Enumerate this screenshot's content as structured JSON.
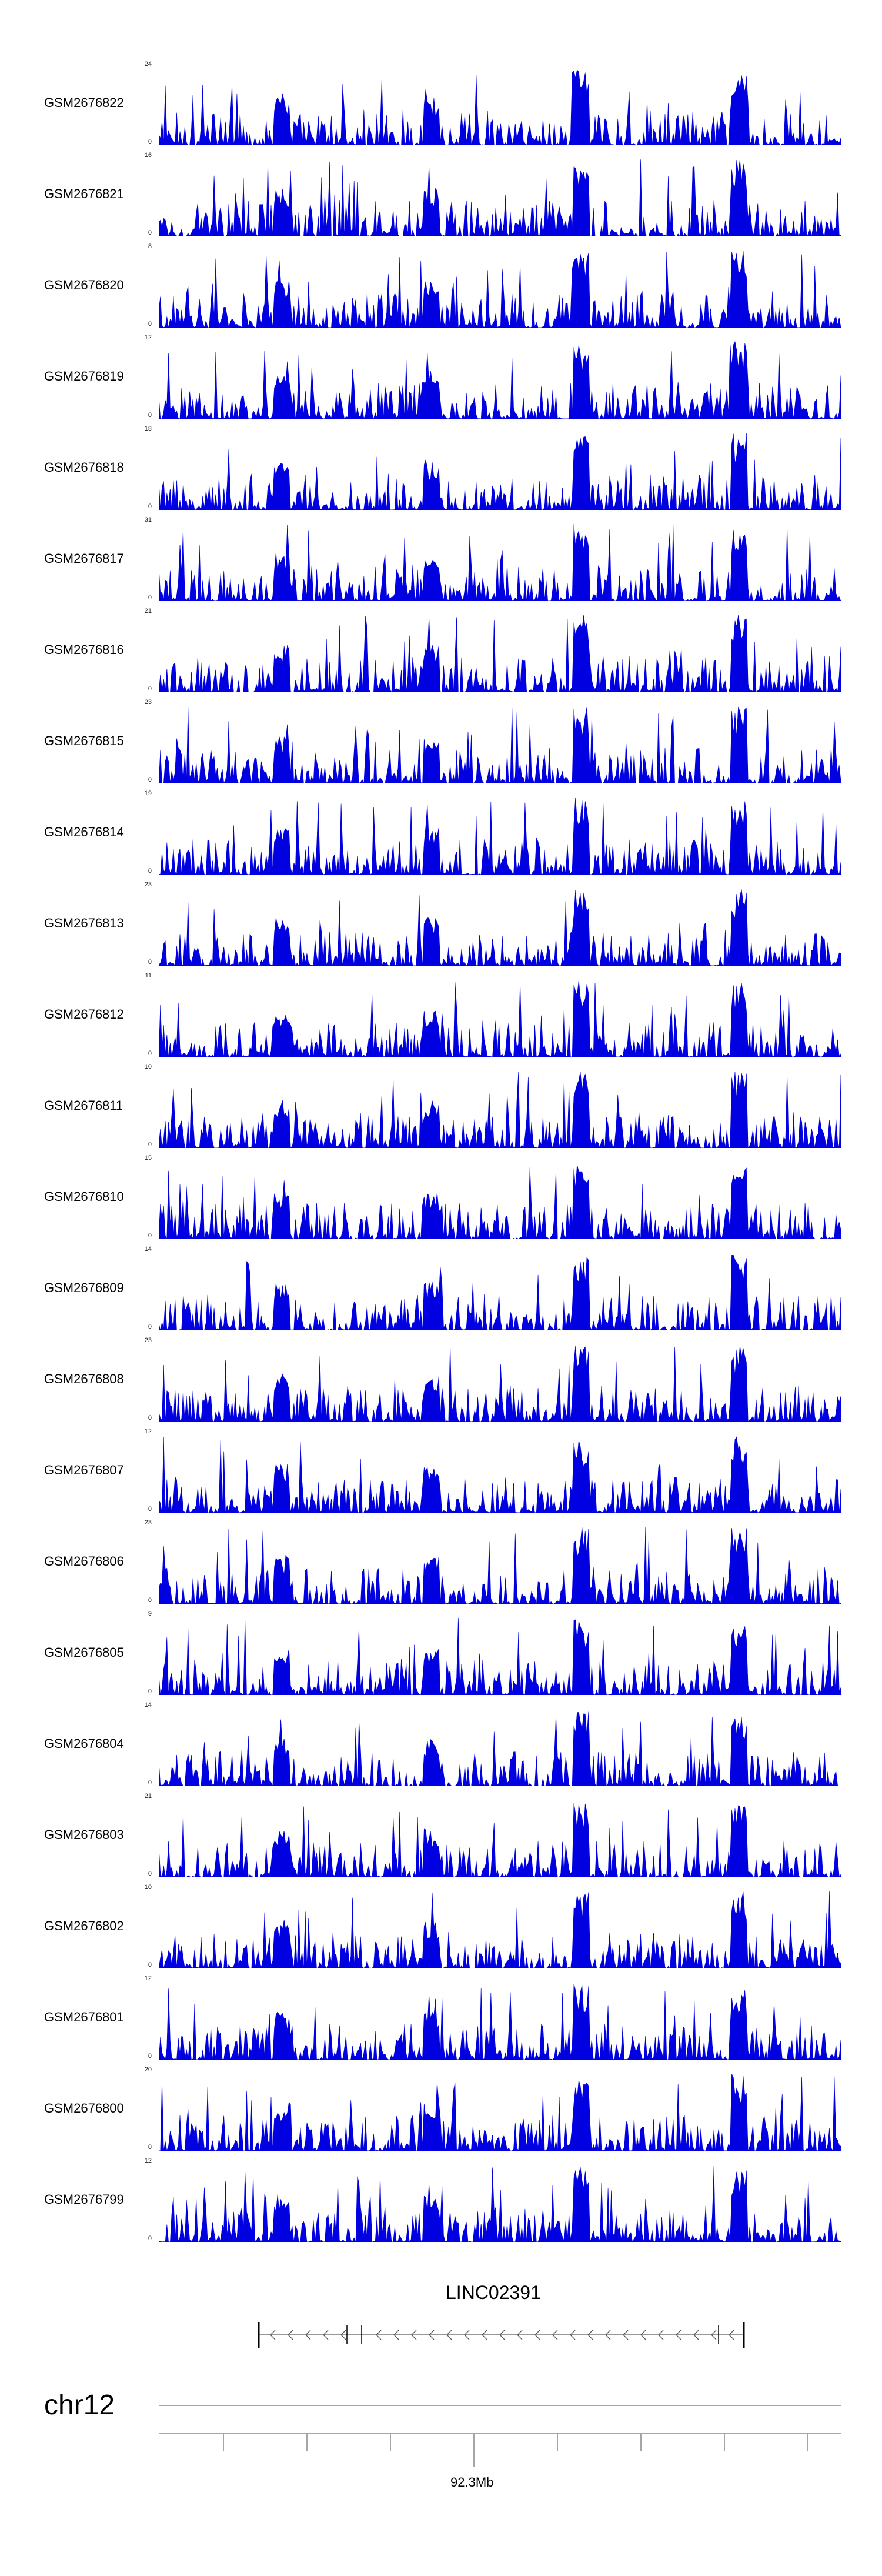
{
  "tracks": [
    {
      "label": "GSM2676822",
      "ymax": "24",
      "ymin": "0"
    },
    {
      "label": "GSM2676821",
      "ymax": "16",
      "ymin": "0"
    },
    {
      "label": "GSM2676820",
      "ymax": "8",
      "ymin": "0"
    },
    {
      "label": "GSM2676819",
      "ymax": "12",
      "ymin": "0"
    },
    {
      "label": "GSM2676818",
      "ymax": "18",
      "ymin": "0"
    },
    {
      "label": "GSM2676817",
      "ymax": "31",
      "ymin": "0"
    },
    {
      "label": "GSM2676816",
      "ymax": "21",
      "ymin": "0"
    },
    {
      "label": "GSM2676815",
      "ymax": "23",
      "ymin": "0"
    },
    {
      "label": "GSM2676814",
      "ymax": "19",
      "ymin": "0"
    },
    {
      "label": "GSM2676813",
      "ymax": "23",
      "ymin": "0"
    },
    {
      "label": "GSM2676812",
      "ymax": "11",
      "ymin": "0"
    },
    {
      "label": "GSM2676811",
      "ymax": "10",
      "ymin": "0"
    },
    {
      "label": "GSM2676810",
      "ymax": "15",
      "ymin": "0"
    },
    {
      "label": "GSM2676809",
      "ymax": "14",
      "ymin": "0"
    },
    {
      "label": "GSM2676808",
      "ymax": "23",
      "ymin": "0"
    },
    {
      "label": "GSM2676807",
      "ymax": "12",
      "ymin": "0"
    },
    {
      "label": "GSM2676806",
      "ymax": "23",
      "ymin": "0"
    },
    {
      "label": "GSM2676805",
      "ymax": "9",
      "ymin": "0"
    },
    {
      "label": "GSM2676804",
      "ymax": "14",
      "ymin": "0"
    },
    {
      "label": "GSM2676803",
      "ymax": "21",
      "ymin": "0"
    },
    {
      "label": "GSM2676802",
      "ymax": "10",
      "ymin": "0"
    },
    {
      "label": "GSM2676801",
      "ymax": "12",
      "ymin": "0"
    },
    {
      "label": "GSM2676800",
      "ymax": "20",
      "ymin": "0"
    },
    {
      "label": "GSM2676799",
      "ymax": "12",
      "ymin": "0"
    }
  ],
  "gene": {
    "name": "LINC02391",
    "strand": "-"
  },
  "ruler": {
    "chrom": "chr12",
    "position_label": "92.3Mb"
  },
  "colors": {
    "signal": "#0000e0",
    "axis": "#888888",
    "text": "#000000"
  }
}
